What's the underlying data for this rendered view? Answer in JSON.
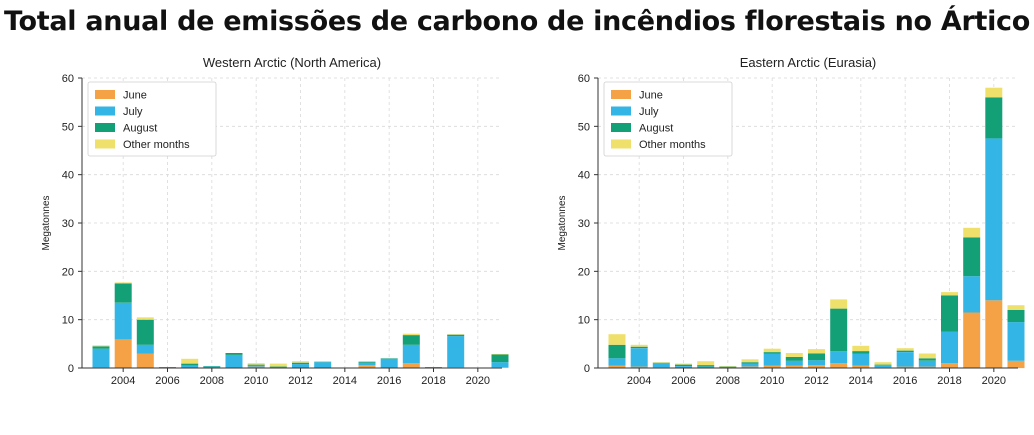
{
  "page_title": "Total anual de emissões de carbono de incêndios florestais no Ártico",
  "colors": {
    "June": "#f4a245",
    "July": "#33b5e5",
    "August": "#13a077",
    "Other months": "#efe06c"
  },
  "chart_data": [
    {
      "type": "bar",
      "stacked": true,
      "title": "Western Arctic (North America)",
      "xlabel": "",
      "ylabel": "Megatonnes",
      "ylim": [
        0,
        60
      ],
      "yticks": [
        0,
        10,
        20,
        30,
        40,
        50,
        60
      ],
      "xticks": [
        2004,
        2006,
        2008,
        2010,
        2012,
        2014,
        2016,
        2018,
        2020
      ],
      "grid": true,
      "legend_position": "top-left",
      "categories": [
        2003,
        2004,
        2005,
        2006,
        2007,
        2008,
        2009,
        2010,
        2011,
        2012,
        2013,
        2014,
        2015,
        2016,
        2017,
        2018,
        2019,
        2020,
        2021
      ],
      "series": [
        {
          "name": "June",
          "values": [
            0.2,
            6.0,
            3.0,
            0,
            0.1,
            0,
            0.1,
            0.3,
            0,
            0.1,
            0,
            0,
            0.6,
            0.1,
            1.0,
            0.1,
            0.2,
            0,
            0.2
          ]
        },
        {
          "name": "July",
          "values": [
            3.8,
            7.5,
            1.8,
            0.2,
            0.4,
            0.3,
            2.6,
            0.2,
            0.2,
            0.7,
            1.2,
            0.1,
            0.5,
            1.8,
            3.8,
            0.1,
            6.4,
            0,
            1.0
          ]
        },
        {
          "name": "August",
          "values": [
            0.5,
            4.0,
            5.2,
            0,
            0.4,
            0.1,
            0.4,
            0.2,
            0.1,
            0.3,
            0.1,
            0,
            0.2,
            0.1,
            2.0,
            0,
            0.3,
            0,
            1.6
          ]
        },
        {
          "name": "Other months",
          "values": [
            0.2,
            0.2,
            0.5,
            0,
            1.0,
            0,
            0,
            0.3,
            0.6,
            0.3,
            0,
            0,
            0.1,
            0,
            0.3,
            0,
            0.1,
            0,
            0.1
          ]
        }
      ]
    },
    {
      "type": "bar",
      "stacked": true,
      "title": "Eastern Arctic (Eurasia)",
      "xlabel": "",
      "ylabel": "Megatonnes",
      "ylim": [
        0,
        60
      ],
      "yticks": [
        0,
        10,
        20,
        30,
        40,
        50,
        60
      ],
      "xticks": [
        2004,
        2006,
        2008,
        2010,
        2012,
        2014,
        2016,
        2018,
        2020
      ],
      "grid": true,
      "legend_position": "top-left",
      "categories": [
        2003,
        2004,
        2005,
        2006,
        2007,
        2008,
        2009,
        2010,
        2011,
        2012,
        2013,
        2014,
        2015,
        2016,
        2017,
        2018,
        2019,
        2020,
        2021
      ],
      "series": [
        {
          "name": "June",
          "values": [
            0.5,
            0.3,
            0.2,
            0.1,
            0.1,
            0.1,
            0.3,
            0.5,
            0.5,
            0.6,
            1.0,
            0.5,
            0.2,
            0.3,
            0.3,
            1.0,
            11.5,
            14.0,
            1.5
          ]
        },
        {
          "name": "July",
          "values": [
            1.5,
            3.8,
            0.8,
            0.3,
            0.2,
            0.1,
            0.6,
            2.5,
            1.0,
            1.0,
            2.5,
            2.5,
            0.4,
            3.0,
            1.2,
            6.5,
            7.5,
            33.5,
            8.0
          ]
        },
        {
          "name": "August",
          "values": [
            2.8,
            0.3,
            0.1,
            0.3,
            0.3,
            0.1,
            0.3,
            0.3,
            0.8,
            1.4,
            8.8,
            0.5,
            0.1,
            0.3,
            0.5,
            7.5,
            8.0,
            8.5,
            2.5
          ]
        },
        {
          "name": "Other months",
          "values": [
            2.2,
            0.4,
            0.1,
            0.2,
            0.8,
            0.1,
            0.6,
            0.7,
            0.8,
            0.9,
            1.9,
            1.1,
            0.5,
            0.5,
            1.0,
            0.7,
            2.0,
            2.0,
            1.0
          ]
        }
      ]
    }
  ]
}
